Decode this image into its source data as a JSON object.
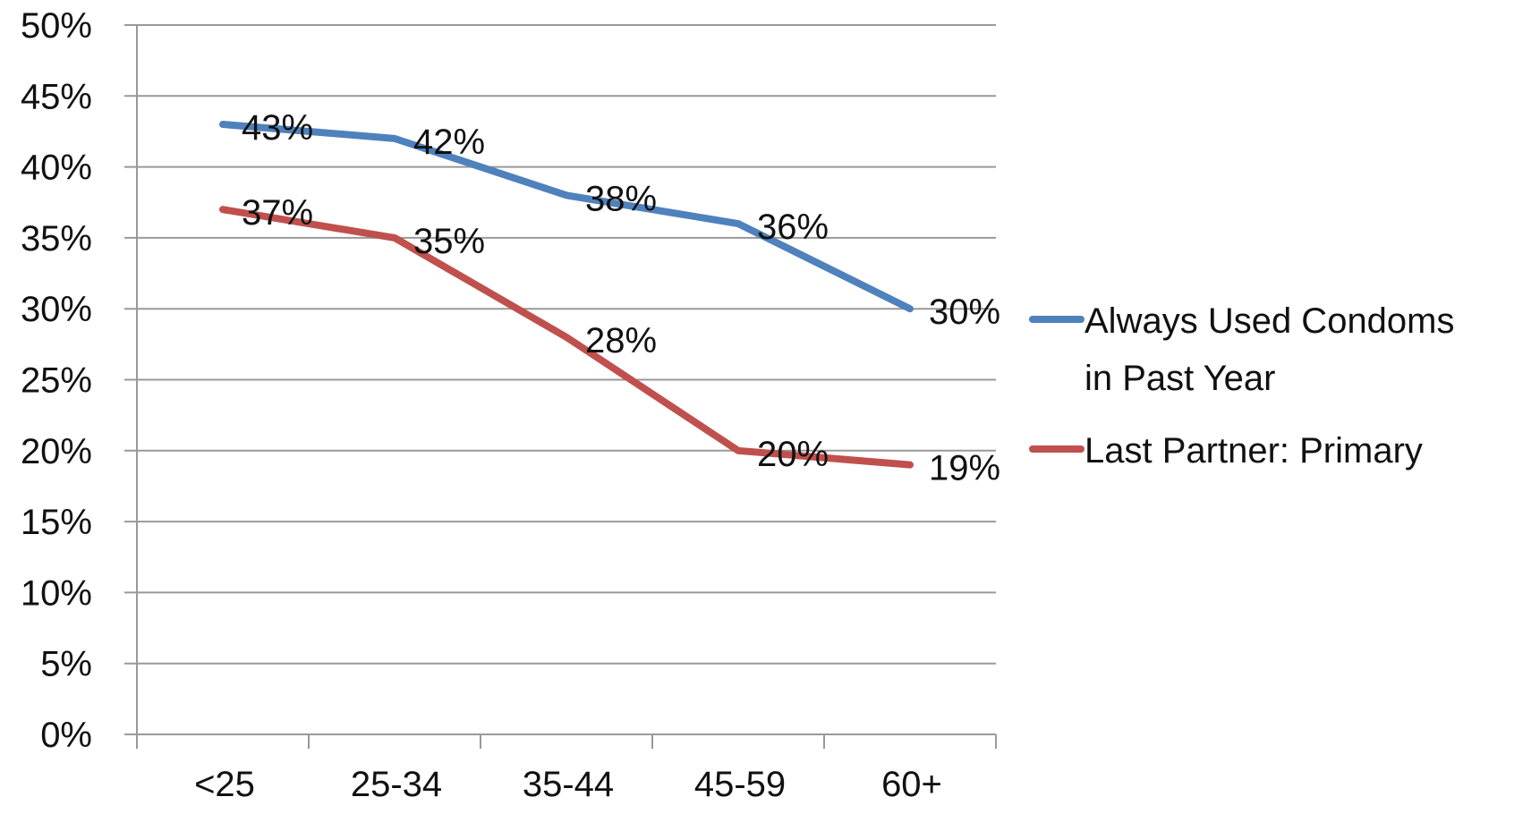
{
  "chart_data": {
    "type": "line",
    "categories": [
      "<25",
      "25-34",
      "35-44",
      "45-59",
      "60+"
    ],
    "series": [
      {
        "name": "Always Used Condoms in Past Year",
        "name_lines": [
          "Always Used Condoms",
          "in Past Year"
        ],
        "values": [
          43,
          42,
          38,
          36,
          30
        ],
        "data_labels": [
          "43%",
          "42%",
          "38%",
          "36%",
          "30%"
        ],
        "color": "#4f81bd"
      },
      {
        "name": "Last Partner: Primary",
        "name_lines": [
          "Last Partner: Primary"
        ],
        "values": [
          37,
          35,
          28,
          20,
          19
        ],
        "data_labels": [
          "37%",
          "35%",
          "28%",
          "20%",
          "19%"
        ],
        "color": "#c0504d"
      }
    ],
    "ylim": [
      0,
      50
    ],
    "y_ticks": [
      0,
      5,
      10,
      15,
      20,
      25,
      30,
      35,
      40,
      45,
      50
    ],
    "y_tick_labels": [
      "0%",
      "5%",
      "10%",
      "15%",
      "20%",
      "25%",
      "30%",
      "35%",
      "40%",
      "45%",
      "50%"
    ],
    "grid": true,
    "legend_position": "right",
    "gridline_color": "#999999",
    "axis_color": "#999999"
  }
}
